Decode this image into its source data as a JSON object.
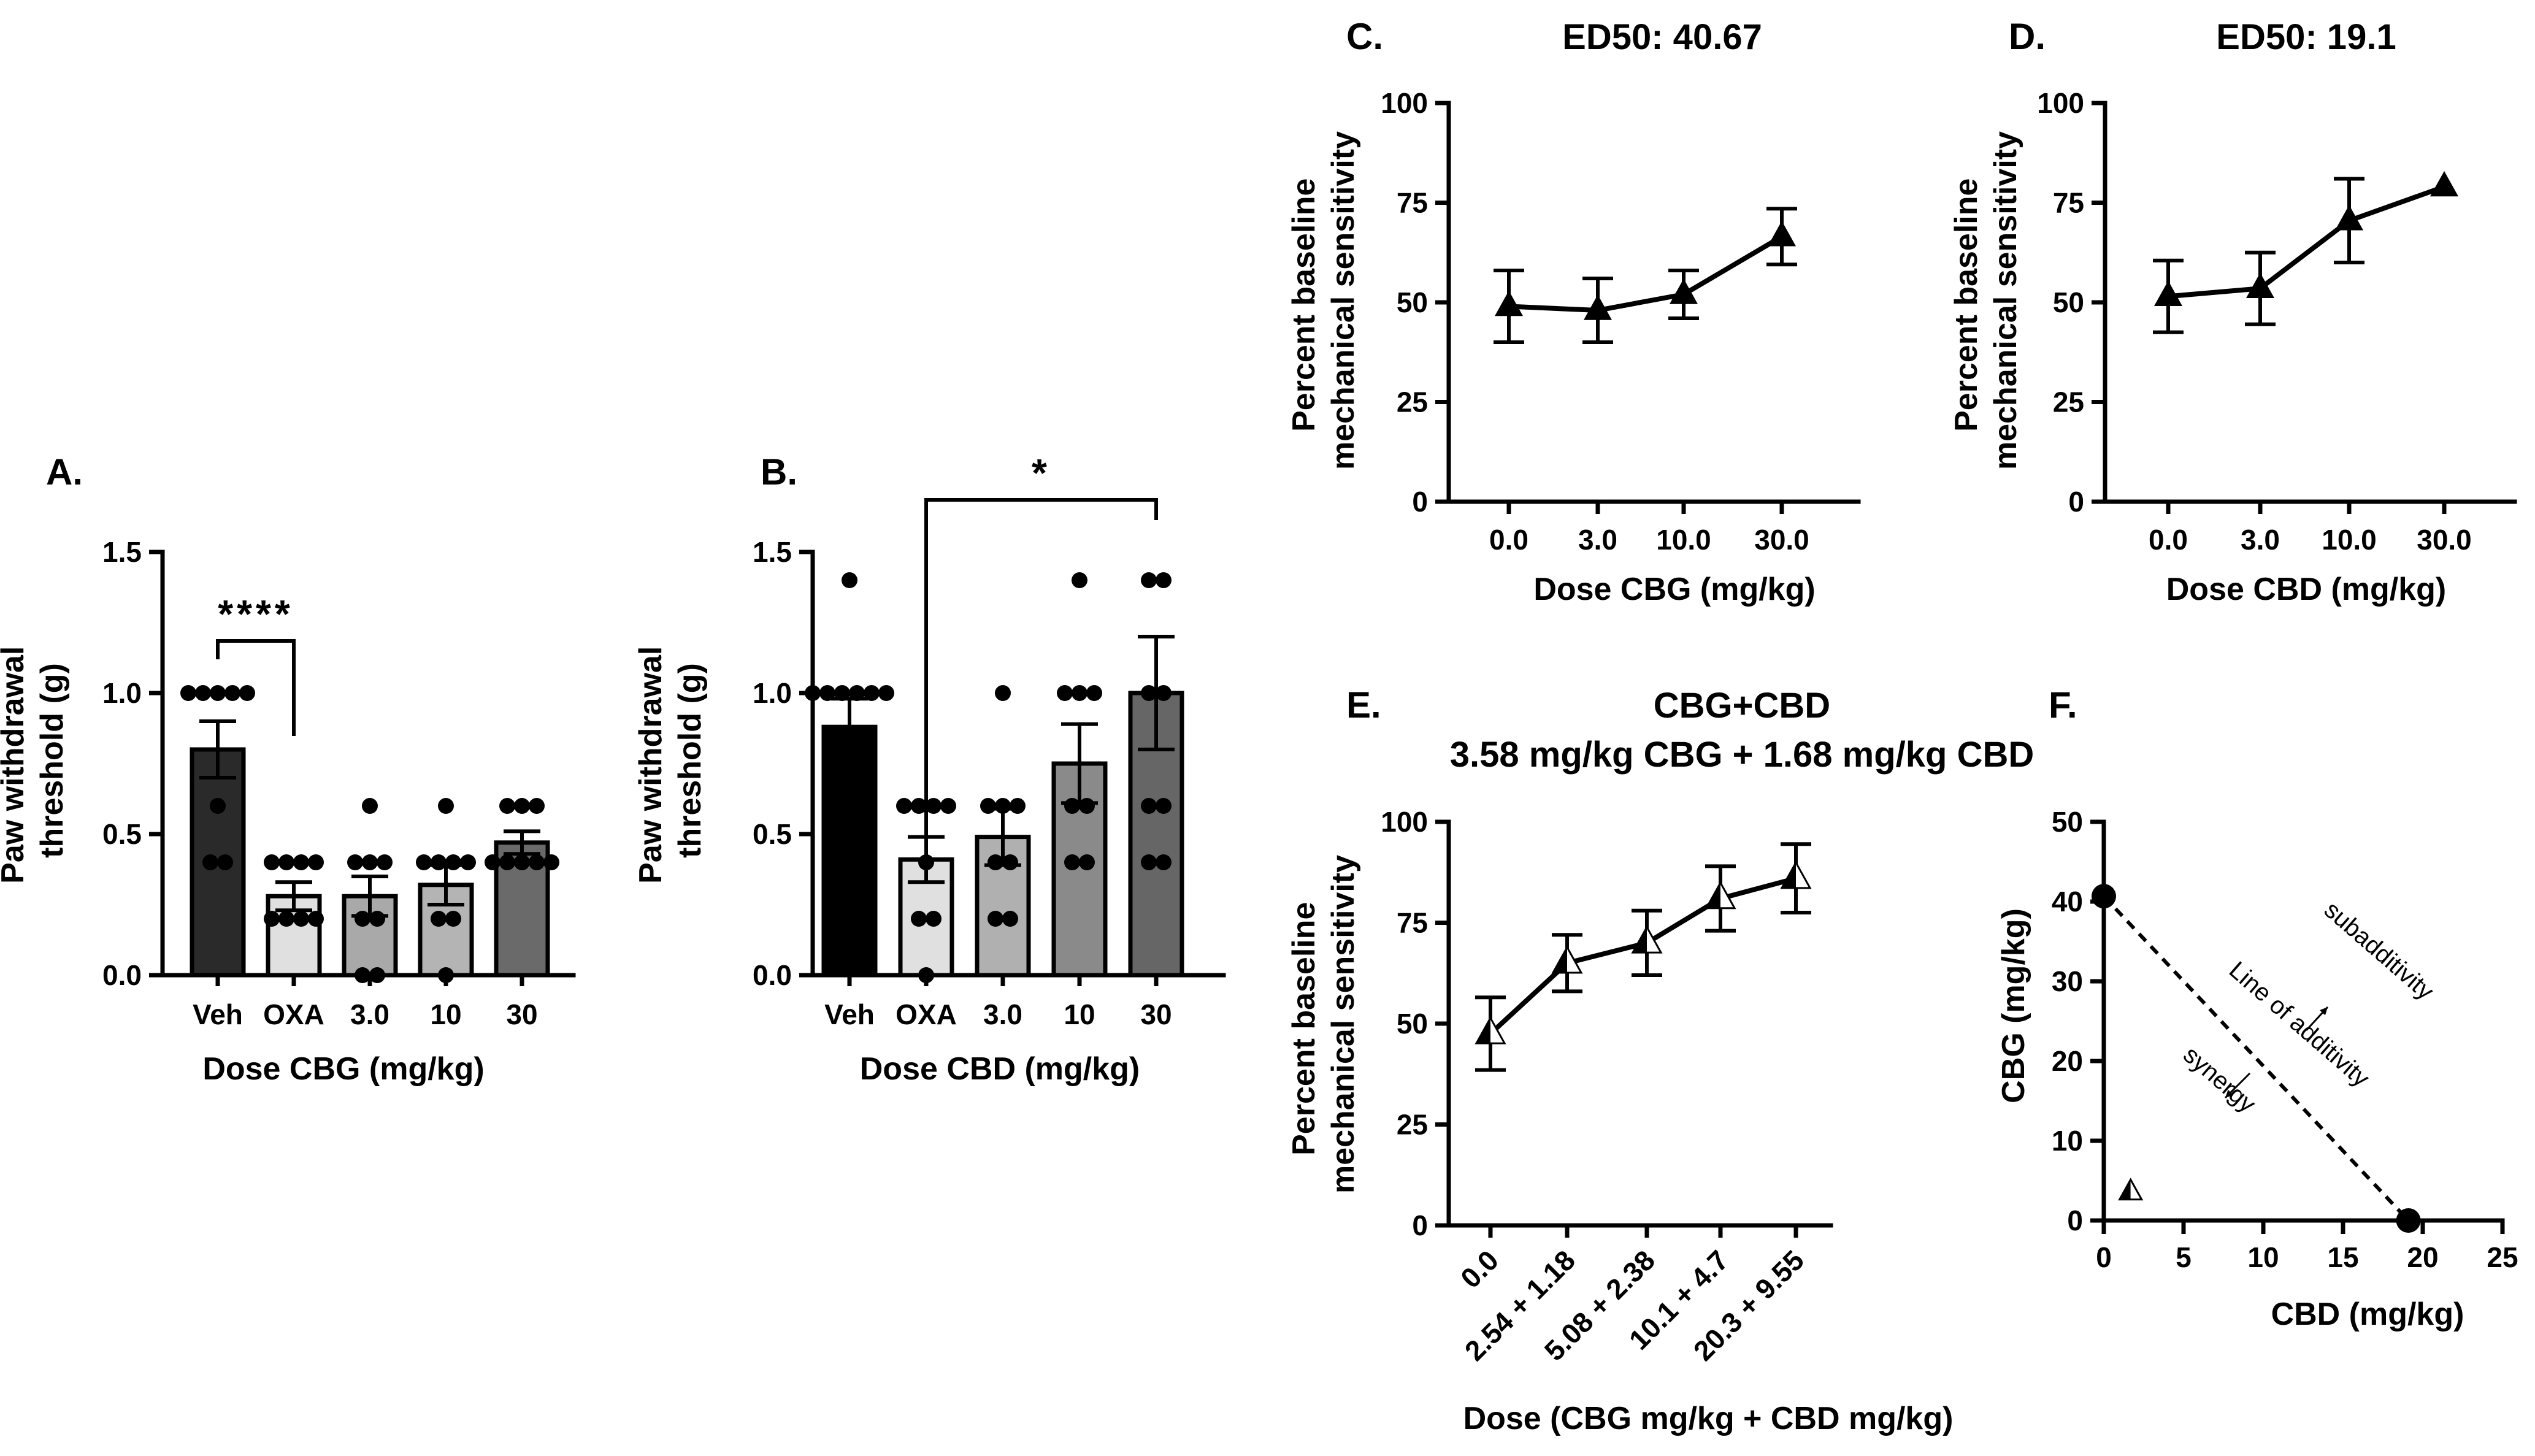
{
  "chart_data": [
    {
      "panel": "A.",
      "type": "bar",
      "categories": [
        "Veh",
        "OXA",
        "3.0",
        "10",
        "30"
      ],
      "values": [
        0.8,
        0.28,
        0.28,
        0.32,
        0.47
      ],
      "errors": [
        0.1,
        0.05,
        0.07,
        0.07,
        0.04
      ],
      "points": [
        [
          1.0,
          1.0,
          1.0,
          1.0,
          1.0,
          0.6,
          0.4,
          0.4
        ],
        [
          0.4,
          0.4,
          0.4,
          0.4,
          0.2,
          0.2,
          0.2,
          0.2
        ],
        [
          0.6,
          0.4,
          0.4,
          0.4,
          0.2,
          0.2,
          0.0,
          0.0
        ],
        [
          0.6,
          0.4,
          0.4,
          0.4,
          0.4,
          0.2,
          0.2,
          0.0
        ],
        [
          0.6,
          0.6,
          0.6,
          0.4,
          0.4,
          0.4,
          0.4,
          0.4
        ]
      ],
      "bar_colors": [
        "#2a2a2a",
        "#e0e0e0",
        "#a9a9a9",
        "#b4b4b4",
        "#6a6a6a"
      ],
      "ylim": [
        0,
        1.5
      ],
      "yticks": [
        "0.0",
        "0.5",
        "1.0",
        "1.5"
      ],
      "ylabel": [
        "Paw withdrawal",
        "threshold (g)"
      ],
      "xlabel": "Dose CBG (mg/kg)",
      "significance": {
        "label": "****",
        "from": 0,
        "to": 1
      }
    },
    {
      "panel": "B.",
      "type": "bar",
      "categories": [
        "Veh",
        "OXA",
        "3.0",
        "10",
        "30"
      ],
      "values": [
        0.88,
        0.41,
        0.49,
        0.75,
        1.0
      ],
      "errors": [
        0.1,
        0.08,
        0.1,
        0.14,
        0.2
      ],
      "points": [
        [
          1.4,
          1.0,
          1.0,
          1.0,
          1.0,
          1.0,
          1.0
        ],
        [
          0.6,
          0.6,
          0.6,
          0.6,
          0.4,
          0.2,
          0.2,
          0.0
        ],
        [
          1.0,
          0.6,
          0.6,
          0.6,
          0.4,
          0.4,
          0.2,
          0.2
        ],
        [
          1.4,
          1.0,
          1.0,
          1.0,
          0.6,
          0.6,
          0.4,
          0.4
        ],
        [
          1.4,
          1.4,
          1.0,
          1.0,
          0.6,
          0.6,
          0.4,
          0.4
        ]
      ],
      "bar_colors": [
        "#000000",
        "#e0e0e0",
        "#b0b0b0",
        "#8a8a8a",
        "#666666"
      ],
      "ylim": [
        0,
        1.5
      ],
      "yticks": [
        "0.0",
        "0.5",
        "1.0",
        "1.5"
      ],
      "ylabel": [
        "Paw withdrawal",
        "threshold (g)"
      ],
      "xlabel": "Dose CBD (mg/kg)",
      "significance": {
        "label": "*",
        "from": 1,
        "to": 4
      }
    },
    {
      "panel": "C.",
      "type": "line",
      "title": "ED50: 40.67",
      "categories": [
        "0.0",
        "3.0",
        "10.0",
        "30.0"
      ],
      "values": [
        49,
        48,
        52,
        66.5
      ],
      "errors": [
        9,
        8,
        6,
        7
      ],
      "marker": "filled-triangle",
      "ylim": [
        0,
        100
      ],
      "yticks": [
        "0",
        "25",
        "50",
        "75",
        "100"
      ],
      "ylabel": [
        "Percent baseline",
        "mechanical sensitivity"
      ],
      "xlabel": "Dose CBG (mg/kg)"
    },
    {
      "panel": "D.",
      "type": "line",
      "title": "ED50: 19.1",
      "categories": [
        "0.0",
        "3.0",
        "10.0",
        "30.0"
      ],
      "values": [
        51.5,
        53.5,
        70.5,
        79
      ],
      "errors": [
        9,
        9,
        10.5,
        0
      ],
      "marker": "filled-triangle",
      "ylim": [
        0,
        100
      ],
      "yticks": [
        "0",
        "25",
        "50",
        "75",
        "100"
      ],
      "ylabel": [
        "Percent baseline",
        "mechanical sensitivity"
      ],
      "xlabel": "Dose CBD (mg/kg)"
    },
    {
      "panel": "E.",
      "type": "line",
      "title": [
        "CBG+CBD",
        "3.58 mg/kg CBG + 1.68 mg/kg CBD"
      ],
      "categories": [
        "0.0",
        "2.54 + 1.18",
        "5.08 + 2.38",
        "10.1 + 4.7",
        "20.3 + 9.55"
      ],
      "values": [
        47.5,
        65,
        70,
        81,
        86
      ],
      "errors": [
        9,
        7,
        8,
        8,
        8.5
      ],
      "marker": "half-filled-triangle",
      "ylim": [
        0,
        100
      ],
      "yticks": [
        "0",
        "25",
        "50",
        "75",
        "100"
      ],
      "ylabel": [
        "Percent baseline",
        "mechanical sensitivity"
      ],
      "xlabel": "Dose (CBG mg/kg + CBD mg/kg)"
    },
    {
      "panel": "F.",
      "type": "scatter",
      "xlim": [
        0,
        25
      ],
      "ylim": [
        0,
        50
      ],
      "xticks": [
        "0",
        "5",
        "10",
        "15",
        "20",
        "25"
      ],
      "yticks": [
        "0",
        "10",
        "20",
        "30",
        "40",
        "50"
      ],
      "xlabel": "CBD (mg/kg)",
      "ylabel": "CBG (mg/kg)",
      "ed50_points": [
        {
          "x": 0,
          "y": 40.67
        },
        {
          "x": 19.1,
          "y": 0
        }
      ],
      "combination_point": {
        "x": 1.68,
        "y": 3.58
      },
      "annotations": {
        "line": "Line of additivity",
        "sub": "subadditivity",
        "syn": "synergy"
      },
      "sub_color": "#c8c8c8"
    }
  ]
}
